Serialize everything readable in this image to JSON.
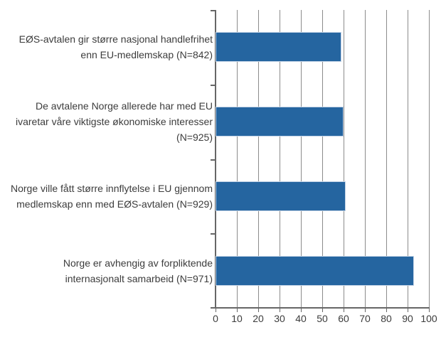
{
  "chart_data": {
    "type": "bar",
    "orientation": "horizontal",
    "title": "",
    "xlabel": "",
    "ylabel": "",
    "xlim": [
      0,
      100
    ],
    "xticks": [
      0,
      10,
      20,
      30,
      40,
      50,
      60,
      70,
      80,
      90,
      100
    ],
    "grid": true,
    "legend_position": "none",
    "categories": [
      "EØS-avtalen gir større nasjonal handlefrihet enn EU-medlemskap (N=842)",
      "De avtalene Norge allerede har med EU ivaretar våre viktigste økonomiske interesser (N=925)",
      "Norge ville fått større innflytelse i EU gjennom medlemskap enn med EØS-avtalen (N=929)",
      "Norge er avhengig av forpliktende internasjonalt samarbeid (N=971)"
    ],
    "category_lines": [
      [
        "EØS-avtalen gir større nasjonal handlefrihet",
        "enn EU-medlemskap (N=842)"
      ],
      [
        "De avtalene Norge allerede har med EU",
        "ivaretar våre viktigste økonomiske interesser",
        "(N=925)"
      ],
      [
        "Norge ville fått større innflytelse i EU gjennom",
        "medlemskap enn med EØS-avtalen (N=929)"
      ],
      [
        "Norge er avhengig av forpliktende",
        "internasjonalt samarbeid (N=971)"
      ]
    ],
    "values": [
      59,
      60,
      61,
      93
    ],
    "colors": {
      "bar": "#2565A0",
      "bar_border": "#c3d3e6",
      "grid": "#8c8c8c",
      "axis": "#666666",
      "text": "#3c3c3c",
      "background": "#ffffff"
    }
  }
}
